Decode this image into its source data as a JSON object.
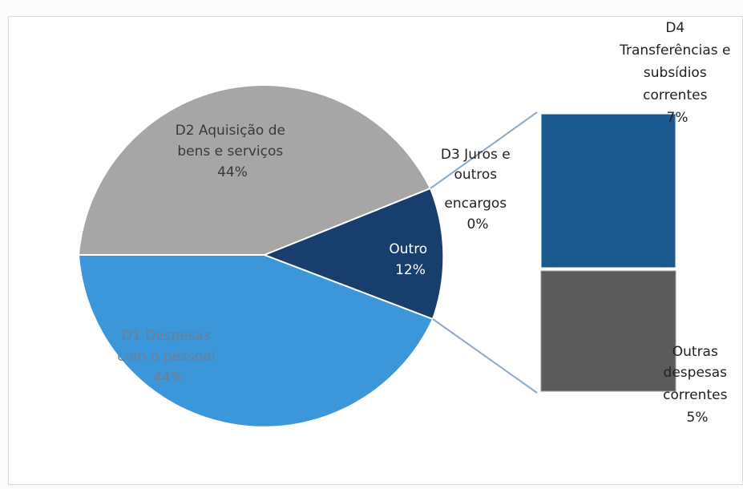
{
  "chart_data": {
    "type": "bar-of-pie",
    "pie": {
      "slices": [
        {
          "label": "D2 Aquisição de bens e serviços",
          "percent": "44%",
          "value": 44,
          "color": "#a6a6a6"
        },
        {
          "label": "D1 Despesas com o pessoal",
          "percent": "44%",
          "value": 44,
          "color": "#3498db"
        },
        {
          "label": "Outro",
          "percent": "12%",
          "value": 12,
          "color": "#1a3f6b"
        }
      ],
      "outside_label": {
        "label": "D3 Juros e outros encargos",
        "percent": "0%",
        "value": 0
      }
    },
    "bar": {
      "segments": [
        {
          "label": "D4 Transferências e subsídios correntes",
          "percent": "7%",
          "value": 7,
          "color": "#1c5b8f"
        },
        {
          "label": "Outras despesas correntes",
          "percent": "5%",
          "value": 5,
          "color": "#595959"
        }
      ]
    }
  },
  "labels": {
    "d2_line1": "D2 Aquisição de",
    "d2_line2": "bens e serviços",
    "d2_pct": "44%",
    "d1_line1": "D1 Despesas",
    "d1_line2": "com o pessoal",
    "d1_pct": "44%",
    "outro_line1": "Outro",
    "outro_pct": "12%",
    "d3_line1": "D3 Juros e",
    "d3_line2": "outros",
    "d3_line3": "encargos",
    "d3_pct": "0%",
    "d4_line1": "D4",
    "d4_line2": "Transferências e",
    "d4_line3": "subsídios",
    "d4_line4": "correntes",
    "d4_pct": "7%",
    "od_line1": "Outras",
    "od_line2": "despesas",
    "od_line3": "correntes",
    "od_pct": "5%"
  }
}
